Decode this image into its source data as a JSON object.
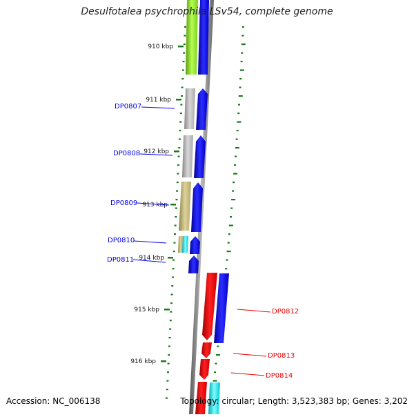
{
  "title": "Desulfotalea psychrophila LSv54, complete genome",
  "accession": "Accession: NC_006138",
  "info": "Topology: circular; Length: 3,523,383 bp; Genes: 3,202",
  "ticks": [
    "910 kbp",
    "911 kbp",
    "912 kbp",
    "913 kbp",
    "914 kbp",
    "915 kbp",
    "916 kbp"
  ],
  "genes": {
    "left": [
      "DP0807",
      "DP0808",
      "DP0809",
      "DP0810",
      "DP0811"
    ],
    "right": [
      "DP0812",
      "DP0813",
      "DP0814"
    ]
  },
  "colors": {
    "forward": "#0000ee",
    "reverse": "#ee0000",
    "cyan": "#00e5ee",
    "green": "#90ee30",
    "gray": "#bbbbbb",
    "khaki": "#c8bb7a",
    "tick": "#1a7a1a",
    "backbone": "#888888"
  }
}
